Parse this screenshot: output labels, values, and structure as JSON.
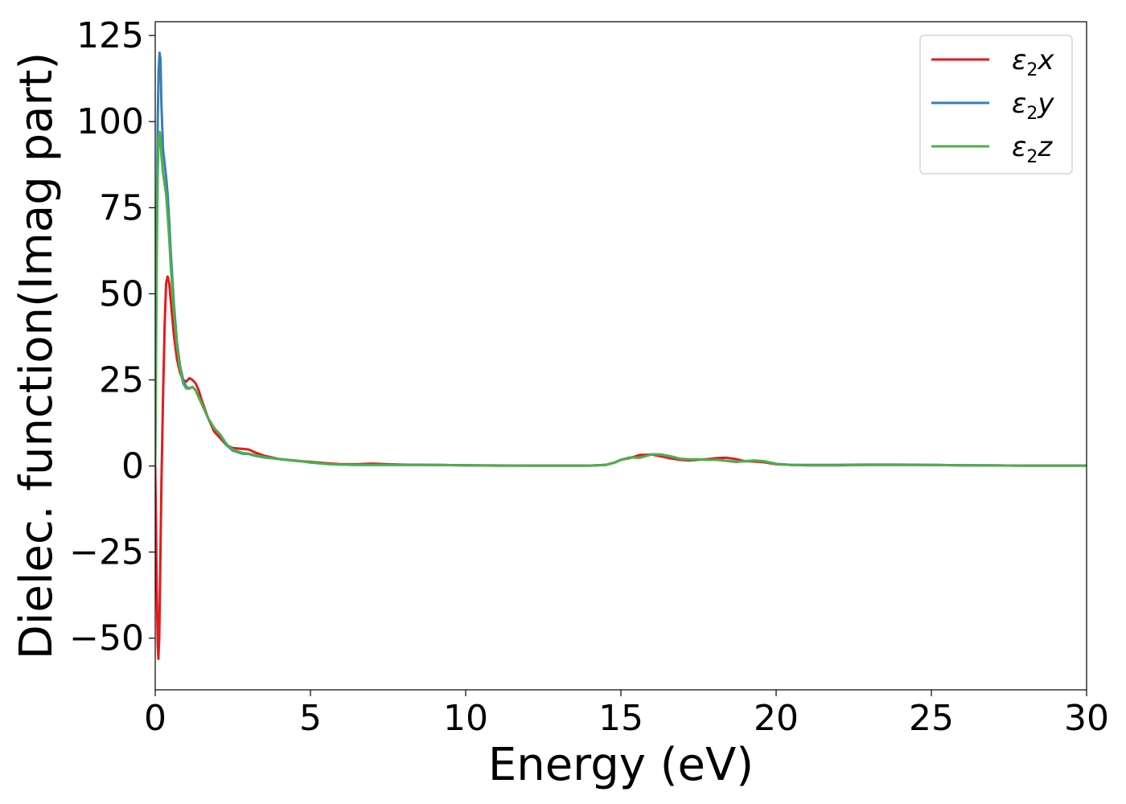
{
  "chart_data": {
    "type": "line",
    "title": "",
    "xlabel": "Energy (eV)",
    "ylabel": "Dielec. function(Imag part)",
    "xlim": [
      0,
      30
    ],
    "ylim": [
      -65,
      129
    ],
    "xticks": [
      0,
      5,
      10,
      15,
      20,
      25,
      30
    ],
    "xtick_labels": [
      "0",
      "5",
      "10",
      "15",
      "20",
      "25",
      "30"
    ],
    "yticks": [
      -50,
      -25,
      0,
      25,
      50,
      75,
      100,
      125
    ],
    "ytick_labels": [
      "−50",
      "−25",
      "0",
      "25",
      "50",
      "75",
      "100",
      "125"
    ],
    "grid": false,
    "legend_position": "top-right",
    "series": [
      {
        "name": "ε2x",
        "legend_base": "ε",
        "legend_sub": "2",
        "legend_tail": "x",
        "color": "#e41a1c",
        "x": [
          0,
          0.02,
          0.05,
          0.08,
          0.1,
          0.13,
          0.16,
          0.2,
          0.25,
          0.3,
          0.35,
          0.4,
          0.45,
          0.5,
          0.6,
          0.7,
          0.8,
          0.9,
          1.0,
          1.1,
          1.2,
          1.3,
          1.4,
          1.5,
          1.7,
          1.9,
          2.1,
          2.3,
          2.5,
          2.8,
          3.0,
          3.2,
          3.5,
          4.0,
          4.5,
          5.0,
          5.5,
          6.0,
          6.5,
          7.0,
          7.5,
          8.0,
          9.0,
          10.0,
          11.0,
          12.0,
          13.0,
          14.0,
          14.5,
          14.8,
          15.0,
          15.3,
          15.6,
          16.0,
          16.3,
          16.6,
          16.9,
          17.2,
          17.5,
          17.8,
          18.1,
          18.4,
          18.7,
          19.0,
          19.3,
          19.6,
          20.0,
          20.5,
          21.0,
          22.0,
          23.0,
          24.0,
          25.0,
          26.0,
          27.0,
          28.0,
          29.0,
          30.0
        ],
        "y": [
          0,
          -15,
          -35,
          -52,
          -56,
          -50,
          -30,
          -5,
          20,
          40,
          53,
          55,
          53,
          48,
          38,
          31,
          27,
          25,
          24.5,
          25.5,
          25,
          24,
          22,
          19,
          14,
          10,
          8,
          6,
          5.2,
          5,
          4.8,
          4,
          3,
          2,
          1.5,
          1.2,
          0.8,
          0.5,
          0.5,
          0.7,
          0.5,
          0.4,
          0.3,
          0.2,
          0.15,
          0.1,
          0.1,
          0.1,
          0.3,
          1,
          1.8,
          2.3,
          3.2,
          3.3,
          2.8,
          2.2,
          1.8,
          1.6,
          1.8,
          2,
          2.3,
          2.4,
          2.0,
          1.4,
          1.3,
          1.1,
          0.5,
          0.3,
          0.3,
          0.3,
          0.4,
          0.4,
          0.3,
          0.2,
          0.15,
          0.1,
          0.1,
          0.1
        ]
      },
      {
        "name": "ε2y",
        "legend_base": "ε",
        "legend_sub": "2",
        "legend_tail": "y",
        "color": "#377eb8",
        "x": [
          0,
          0.02,
          0.05,
          0.08,
          0.11,
          0.14,
          0.17,
          0.2,
          0.25,
          0.3,
          0.35,
          0.4,
          0.45,
          0.5,
          0.6,
          0.7,
          0.8,
          0.9,
          1.0,
          1.1,
          1.2,
          1.3,
          1.4,
          1.5,
          1.7,
          1.9,
          2.1,
          2.3,
          2.5,
          2.8,
          3.0,
          3.2,
          3.5,
          4.0,
          4.5,
          5.0,
          5.5,
          6.0,
          6.5,
          7.0,
          7.5,
          8.0,
          9.0,
          10.0,
          11.0,
          12.0,
          13.0,
          14.0,
          14.5,
          14.8,
          15.0,
          15.3,
          15.6,
          16.0,
          16.3,
          16.6,
          16.9,
          17.2,
          17.5,
          17.8,
          18.1,
          18.4,
          18.7,
          19.0,
          19.3,
          19.6,
          20.0,
          20.5,
          21.0,
          22.0,
          23.0,
          24.0,
          25.0,
          26.0,
          27.0,
          28.0,
          29.0,
          30.0
        ],
        "y": [
          0,
          30,
          70,
          100,
          115,
          120,
          118,
          105,
          92,
          88,
          84,
          79,
          71,
          62,
          47,
          36,
          29,
          25,
          23,
          22.5,
          23,
          22,
          20,
          18,
          14,
          11,
          9,
          6,
          4.5,
          3.6,
          3.5,
          3,
          2.5,
          2,
          1.6,
          1,
          0.6,
          0.4,
          0.3,
          0.3,
          0.3,
          0.3,
          0.3,
          0.2,
          0.1,
          0.1,
          0.1,
          0.1,
          0.3,
          1,
          1.8,
          2.5,
          2.4,
          3.4,
          3.3,
          2.8,
          2.1,
          1.9,
          1.9,
          1.8,
          1.8,
          1.5,
          1.2,
          1.4,
          1.6,
          1.4,
          0.6,
          0.3,
          0.2,
          0.2,
          0.3,
          0.3,
          0.3,
          0.2,
          0.15,
          0.1,
          0.1,
          0.1
        ]
      },
      {
        "name": "ε2z",
        "legend_base": "ε",
        "legend_sub": "2",
        "legend_tail": "z",
        "color": "#4daf4a",
        "x": [
          0,
          0.02,
          0.05,
          0.08,
          0.11,
          0.14,
          0.17,
          0.2,
          0.25,
          0.3,
          0.35,
          0.4,
          0.45,
          0.5,
          0.6,
          0.7,
          0.8,
          0.9,
          1.0,
          1.1,
          1.2,
          1.3,
          1.4,
          1.5,
          1.7,
          1.9,
          2.1,
          2.3,
          2.5,
          2.8,
          3.0,
          3.2,
          3.5,
          4.0,
          4.5,
          5.0,
          5.5,
          6.0,
          6.5,
          7.0,
          7.5,
          8.0,
          9.0,
          10.0,
          11.0,
          12.0,
          13.0,
          14.0,
          14.5,
          14.8,
          15.0,
          15.3,
          15.6,
          16.0,
          16.3,
          16.6,
          16.9,
          17.2,
          17.5,
          17.8,
          18.1,
          18.4,
          18.7,
          19.0,
          19.3,
          19.6,
          20.0,
          20.5,
          21.0,
          22.0,
          23.0,
          24.0,
          25.0,
          26.0,
          27.0,
          28.0,
          29.0,
          30.0
        ],
        "y": [
          0,
          25,
          60,
          85,
          95,
          97,
          95,
          90,
          85,
          82,
          79,
          73,
          66,
          58,
          45,
          35,
          28,
          24,
          22.5,
          22.5,
          23,
          22,
          20,
          18,
          14,
          11,
          9,
          6.3,
          4.8,
          3.8,
          3.6,
          3.2,
          2.6,
          2,
          1.6,
          1.1,
          0.6,
          0.4,
          0.3,
          0.3,
          0.3,
          0.3,
          0.3,
          0.2,
          0.1,
          0.1,
          0.1,
          0.1,
          0.3,
          1,
          1.8,
          2.5,
          2.4,
          3.4,
          3.3,
          2.8,
          2.1,
          1.9,
          1.9,
          1.8,
          1.8,
          1.5,
          1.2,
          1.4,
          1.6,
          1.4,
          0.6,
          0.3,
          0.2,
          0.2,
          0.3,
          0.3,
          0.3,
          0.2,
          0.15,
          0.1,
          0.1,
          0.1
        ]
      }
    ]
  }
}
